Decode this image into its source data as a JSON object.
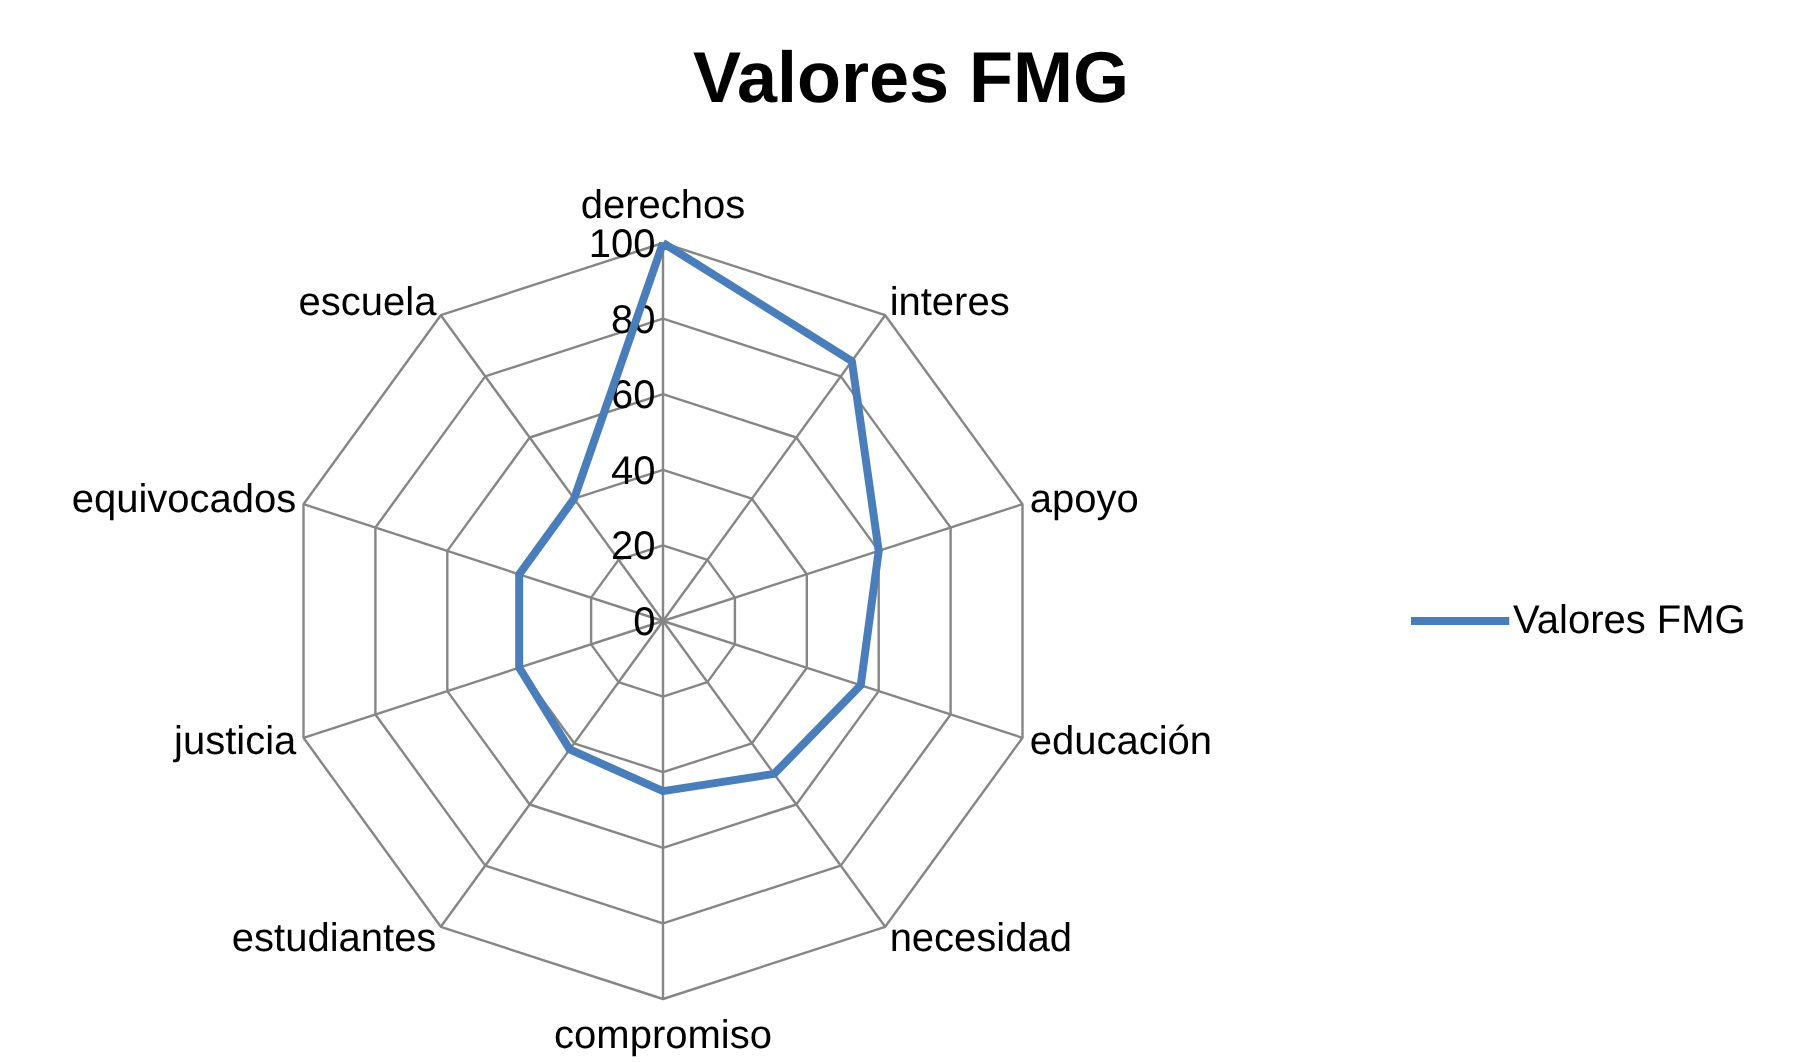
{
  "chart_data": {
    "type": "radar",
    "title": "Valores FMG",
    "categories": [
      "derechos",
      "interes",
      "apoyo",
      "educación",
      "necesidad",
      "compromiso",
      "estudiantes",
      "justicia",
      "equivocados",
      "escuela"
    ],
    "series": [
      {
        "name": "Valores FMG",
        "color": "#4a7ebb",
        "values": [
          100,
          85,
          60,
          55,
          50,
          45,
          42,
          40,
          40,
          40
        ]
      }
    ],
    "ylim": [
      0,
      100
    ],
    "yticks": [
      0,
      20,
      40,
      60,
      80,
      100
    ],
    "grid": true,
    "legend": "right"
  }
}
